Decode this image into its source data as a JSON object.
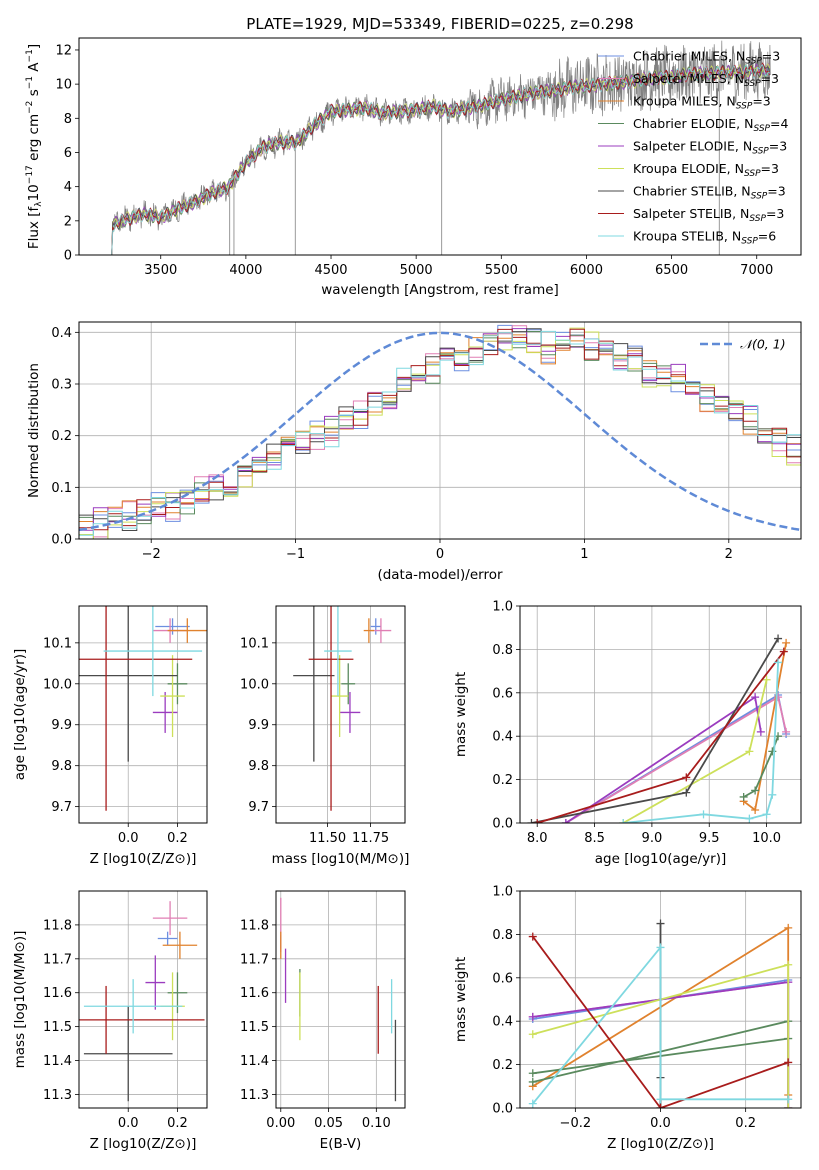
{
  "figure": {
    "title": "PLATE=1929, MJD=53349, FIBERID=0225, z=0.298"
  },
  "styles": {
    "Chabrier MILES": "#6d8fe0",
    "Salpeter MILES": "#e07fb4",
    "Kroupa MILES": "#e0822e",
    "Chabrier ELODIE": "#5a8a5e",
    "Salpeter ELODIE": "#9b3cbf",
    "Kroupa ELODIE": "#cde05a",
    "Chabrier STELIB": "#4a4a4a",
    "Salpeter STELIB": "#a81c1c",
    "Kroupa STELIB": "#7fd8e0",
    "observed": "#808080",
    "normal": "#5f8ad6"
  },
  "chart_data": [
    {
      "type": "line",
      "panel": "spectrum",
      "title": "PLATE=1929, MJD=53349, FIBERID=0225, z=0.298",
      "xlabel": "wavelength [Angstrom, rest frame]",
      "ylabel": "Flux [f_λ 10^-17 erg cm^-2 s^-1 A^-1]",
      "xlim": [
        3020,
        7260
      ],
      "ylim": [
        0,
        12.7
      ],
      "xticks": [
        "3500",
        "4000",
        "4500",
        "5000",
        "5500",
        "6000",
        "6500",
        "7000"
      ],
      "yticks": [
        "0",
        "2",
        "4",
        "6",
        "8",
        "10",
        "12"
      ],
      "grid": false,
      "legend_position": "upper right",
      "continuum": {
        "x": [
          3200,
          3300,
          3400,
          3500,
          3600,
          3700,
          3800,
          3900,
          4000,
          4100,
          4200,
          4300,
          4400,
          4500,
          4600,
          4700,
          4800,
          4900,
          5000,
          5100,
          5200,
          5300,
          5400,
          5500,
          5600,
          5700,
          5800,
          5900,
          6000,
          6100,
          6200,
          6300,
          6400,
          6500,
          6600,
          6700,
          6800,
          6900,
          7000,
          7080
        ],
        "y": [
          1.7,
          2.1,
          2.4,
          2.2,
          2.7,
          3.1,
          3.6,
          4.0,
          5.4,
          6.3,
          6.6,
          6.6,
          7.6,
          8.4,
          8.5,
          8.6,
          8.3,
          8.4,
          8.5,
          8.7,
          8.4,
          8.6,
          8.8,
          9.1,
          9.3,
          9.5,
          9.6,
          9.8,
          9.9,
          10.0,
          10.1,
          10.2,
          10.4,
          10.4,
          10.6,
          10.6,
          10.7,
          10.7,
          10.8,
          10.8
        ]
      },
      "series": [
        {
          "name": "Chabrier MILES",
          "nssp": "3"
        },
        {
          "name": "Salpeter MILES",
          "nssp": "3"
        },
        {
          "name": "Kroupa MILES",
          "nssp": "3"
        },
        {
          "name": "Chabrier ELODIE",
          "nssp": "4"
        },
        {
          "name": "Salpeter ELODIE",
          "nssp": "3"
        },
        {
          "name": "Kroupa ELODIE",
          "nssp": "3"
        },
        {
          "name": "Chabrier STELIB",
          "nssp": "3"
        },
        {
          "name": "Salpeter STELIB",
          "nssp": "3"
        },
        {
          "name": "Kroupa STELIB",
          "nssp": "6"
        }
      ]
    },
    {
      "type": "histogram",
      "panel": "residuals",
      "xlabel": "(data-model)/error",
      "ylabel": "Normed distribution",
      "xlim": [
        -2.5,
        2.5
      ],
      "ylim": [
        0,
        0.42
      ],
      "xticks": [
        "−2",
        "−1",
        "0",
        "1",
        "2"
      ],
      "yticks": [
        "0.0",
        "0.1",
        "0.2",
        "0.3",
        "0.4"
      ],
      "grid": true,
      "legend_position": "upper right",
      "legend_label": "𝒩(0, 1)",
      "bin_width": 0.1,
      "bin_start": -2.5,
      "counts": [
        0.02,
        0.03,
        0.04,
        0.045,
        0.05,
        0.06,
        0.065,
        0.075,
        0.09,
        0.1,
        0.11,
        0.13,
        0.14,
        0.155,
        0.18,
        0.19,
        0.2,
        0.21,
        0.23,
        0.24,
        0.27,
        0.28,
        0.3,
        0.32,
        0.33,
        0.34,
        0.35,
        0.36,
        0.38,
        0.39,
        0.39,
        0.38,
        0.37,
        0.38,
        0.39,
        0.37,
        0.36,
        0.35,
        0.35,
        0.32,
        0.32,
        0.31,
        0.29,
        0.27,
        0.26,
        0.25,
        0.23,
        0.21,
        0.19,
        0.17,
        0.16,
        0.14,
        0.12,
        0.11,
        0.1,
        0.08,
        0.07,
        0.06,
        0.05,
        0.045,
        0.04,
        0.035,
        0.03,
        0.03,
        0.03
      ]
    },
    {
      "type": "scatter",
      "panel": "age-vs-Z",
      "xlabel": "Z [log10(Z/Z⊙)]",
      "ylabel": "age  [log10(age/yr)]",
      "xlim": [
        -0.2,
        0.32
      ],
      "ylim": [
        9.66,
        10.19
      ],
      "xticks": [
        "0.0",
        "0.2"
      ],
      "yticks": [
        "9.7",
        "9.8",
        "9.9",
        "10.0",
        "10.1"
      ],
      "grid": true,
      "points": [
        {
          "name": "Chabrier MILES",
          "x": 0.18,
          "xerr": 0.07,
          "y": 10.14,
          "yerr": 0.02
        },
        {
          "name": "Salpeter MILES",
          "x": 0.17,
          "xerr": 0.07,
          "y": 10.13,
          "yerr": 0.03
        },
        {
          "name": "Kroupa MILES",
          "x": 0.24,
          "xerr": 0.08,
          "y": 10.13,
          "yerr": 0.03
        },
        {
          "name": "Chabrier ELODIE",
          "x": 0.2,
          "xerr": 0.04,
          "y": 10.0,
          "yerr": 0.05
        },
        {
          "name": "Salpeter ELODIE",
          "x": 0.15,
          "xerr": 0.05,
          "y": 9.93,
          "yerr": 0.05
        },
        {
          "name": "Kroupa ELODIE",
          "x": 0.18,
          "xerr": 0.05,
          "y": 9.97,
          "yerr": 0.1
        },
        {
          "name": "Chabrier STELIB",
          "x": 0.0,
          "xerr": 0.2,
          "y": 10.02,
          "yerr": 0.21
        },
        {
          "name": "Salpeter STELIB",
          "x": -0.09,
          "xerr": 0.35,
          "y": 10.06,
          "yerr": 0.37
        },
        {
          "name": "Kroupa STELIB",
          "x": 0.1,
          "xerr": 0.2,
          "y": 10.08,
          "yerr": 0.11
        }
      ]
    },
    {
      "type": "scatter",
      "panel": "age-vs-mass",
      "xlabel": "mass [log10(M/M⊙)]",
      "xlim": [
        11.2,
        11.95
      ],
      "ylim": [
        9.66,
        10.19
      ],
      "xticks": [
        "11.50",
        "11.75"
      ],
      "yticks": [
        "9.7",
        "9.8",
        "9.9",
        "10.0",
        "10.1"
      ],
      "grid": true,
      "points": [
        {
          "name": "Chabrier MILES",
          "x": 11.78,
          "xerr": 0.03,
          "y": 10.14,
          "yerr": 0.02
        },
        {
          "name": "Salpeter MILES",
          "x": 11.81,
          "xerr": 0.06,
          "y": 10.13,
          "yerr": 0.03
        },
        {
          "name": "Kroupa MILES",
          "x": 11.74,
          "xerr": 0.03,
          "y": 10.13,
          "yerr": 0.03
        },
        {
          "name": "Chabrier ELODIE",
          "x": 11.62,
          "xerr": 0.04,
          "y": 10.0,
          "yerr": 0.05
        },
        {
          "name": "Salpeter ELODIE",
          "x": 11.63,
          "xerr": 0.06,
          "y": 9.93,
          "yerr": 0.05
        },
        {
          "name": "Kroupa ELODIE",
          "x": 11.57,
          "xerr": 0.05,
          "y": 9.97,
          "yerr": 0.1
        },
        {
          "name": "Chabrier STELIB",
          "x": 11.42,
          "xerr": 0.12,
          "y": 10.02,
          "yerr": 0.21
        },
        {
          "name": "Salpeter STELIB",
          "x": 11.52,
          "xerr": 0.13,
          "y": 10.06,
          "yerr": 0.37
        },
        {
          "name": "Kroupa STELIB",
          "x": 11.56,
          "xerr": 0.08,
          "y": 10.08,
          "yerr": 0.11
        }
      ]
    },
    {
      "type": "line",
      "panel": "weight-vs-age",
      "xlabel": "age  [log10(age/yr)]",
      "ylabel": "mass weight",
      "xlim": [
        7.85,
        10.3
      ],
      "ylim": [
        0,
        1.0
      ],
      "xticks": [
        "8.0",
        "8.5",
        "9.0",
        "9.5",
        "10.0"
      ],
      "yticks": [
        "0.0",
        "0.2",
        "0.4",
        "0.6",
        "0.8",
        "1.0"
      ],
      "grid": true,
      "series": [
        {
          "name": "Chabrier MILES",
          "x": [
            8.25,
            10.1,
            10.17
          ],
          "y": [
            0.0,
            0.59,
            0.41
          ]
        },
        {
          "name": "Salpeter MILES",
          "x": [
            8.25,
            10.1,
            10.17
          ],
          "y": [
            0.0,
            0.58,
            0.42
          ]
        },
        {
          "name": "Kroupa MILES",
          "x": [
            9.8,
            9.9,
            10.17
          ],
          "y": [
            0.1,
            0.06,
            0.83
          ]
        },
        {
          "name": "Chabrier ELODIE",
          "x": [
            9.8,
            9.9,
            10.05,
            10.1
          ],
          "y": [
            0.12,
            0.15,
            0.33,
            0.4
          ]
        },
        {
          "name": "Salpeter ELODIE",
          "x": [
            8.25,
            9.9,
            9.95
          ],
          "y": [
            0.0,
            0.58,
            0.42
          ]
        },
        {
          "name": "Kroupa ELODIE",
          "x": [
            8.75,
            9.85,
            10.0
          ],
          "y": [
            0.0,
            0.33,
            0.66
          ]
        },
        {
          "name": "Chabrier STELIB",
          "x": [
            7.95,
            9.3,
            10.1
          ],
          "y": [
            0.0,
            0.14,
            0.85
          ]
        },
        {
          "name": "Salpeter STELIB",
          "x": [
            8.0,
            9.3,
            10.15
          ],
          "y": [
            0.0,
            0.21,
            0.79
          ]
        },
        {
          "name": "Kroupa STELIB",
          "x": [
            8.75,
            9.45,
            9.85,
            10.0,
            10.05,
            10.1
          ],
          "y": [
            0.0,
            0.04,
            0.02,
            0.04,
            0.13,
            0.74
          ]
        }
      ]
    },
    {
      "type": "scatter",
      "panel": "mass-vs-Z",
      "xlabel": "Z [log10(Z/Z⊙)]",
      "ylabel": "mass [log10(M/M⊙)]",
      "xlim": [
        -0.2,
        0.32
      ],
      "ylim": [
        11.26,
        11.9
      ],
      "xticks": [
        "0.0",
        "0.2"
      ],
      "yticks": [
        "11.3",
        "11.4",
        "11.5",
        "11.6",
        "11.7",
        "11.8"
      ],
      "grid": true,
      "points": [
        {
          "name": "Chabrier MILES",
          "x": 0.16,
          "xerr": 0.04,
          "y": 11.76,
          "yerr": 0.02
        },
        {
          "name": "Salpeter MILES",
          "x": 0.17,
          "xerr": 0.07,
          "y": 11.82,
          "yerr": 0.05
        },
        {
          "name": "Kroupa MILES",
          "x": 0.21,
          "xerr": 0.07,
          "y": 11.74,
          "yerr": 0.04
        },
        {
          "name": "Chabrier ELODIE",
          "x": 0.2,
          "xerr": 0.04,
          "y": 11.6,
          "yerr": 0.06
        },
        {
          "name": "Salpeter ELODIE",
          "x": 0.11,
          "xerr": 0.04,
          "y": 11.63,
          "yerr": 0.08
        },
        {
          "name": "Kroupa ELODIE",
          "x": 0.18,
          "xerr": 0.05,
          "y": 11.56,
          "yerr": 0.1
        },
        {
          "name": "Chabrier STELIB",
          "x": 0.0,
          "xerr": 0.18,
          "y": 11.42,
          "yerr": 0.14
        },
        {
          "name": "Salpeter STELIB",
          "x": -0.09,
          "xerr": 0.4,
          "y": 11.52,
          "yerr": 0.1
        },
        {
          "name": "Kroupa STELIB",
          "x": 0.02,
          "xerr": 0.2,
          "y": 11.56,
          "yerr": 0.08
        }
      ]
    },
    {
      "type": "scatter",
      "panel": "mass-vs-EBV",
      "xlabel": "E(B-V)",
      "xlim": [
        -0.005,
        0.13
      ],
      "ylim": [
        11.26,
        11.9
      ],
      "xticks": [
        "0.00",
        "0.05",
        "0.10"
      ],
      "yticks": [
        "11.3",
        "11.4",
        "11.5",
        "11.6",
        "11.7",
        "11.8"
      ],
      "grid": true,
      "points": [
        {
          "name": "Chabrier MILES",
          "x": 0.0,
          "y": 11.75,
          "yerr": 0.02
        },
        {
          "name": "Salpeter MILES",
          "x": 0.0,
          "y": 11.8,
          "yerr": 0.08
        },
        {
          "name": "Kroupa MILES",
          "x": 0.0,
          "y": 11.74,
          "yerr": 0.04
        },
        {
          "name": "Chabrier ELODIE",
          "x": 0.02,
          "y": 11.6,
          "yerr": 0.07
        },
        {
          "name": "Salpeter ELODIE",
          "x": 0.005,
          "y": 11.65,
          "yerr": 0.08
        },
        {
          "name": "Kroupa ELODIE",
          "x": 0.02,
          "y": 11.56,
          "yerr": 0.1
        },
        {
          "name": "Chabrier STELIB",
          "x": 0.12,
          "y": 11.4,
          "yerr": 0.12
        },
        {
          "name": "Salpeter STELIB",
          "x": 0.102,
          "y": 11.52,
          "yerr": 0.1
        },
        {
          "name": "Kroupa STELIB",
          "x": 0.116,
          "y": 11.56,
          "yerr": 0.08
        }
      ]
    },
    {
      "type": "line",
      "panel": "weight-vs-Z",
      "xlabel": "Z [log10(Z/Z⊙)]",
      "ylabel": "mass weight",
      "xlim": [
        -0.33,
        0.33
      ],
      "ylim": [
        0,
        1.0
      ],
      "xticks": [
        "−0.2",
        "0.0",
        "0.2"
      ],
      "yticks": [
        "0.0",
        "0.2",
        "0.4",
        "0.6",
        "0.8",
        "1.0"
      ],
      "grid": true,
      "series": [
        {
          "name": "Chabrier MILES",
          "x": [
            -0.3,
            0.3,
            0.3
          ],
          "y": [
            0.41,
            0.59,
            0.0
          ]
        },
        {
          "name": "Salpeter MILES",
          "x": [
            -0.3,
            0.3,
            0.3
          ],
          "y": [
            0.42,
            0.58,
            0.0
          ]
        },
        {
          "name": "Kroupa MILES",
          "x": [
            -0.3,
            0.3,
            0.3
          ],
          "y": [
            0.1,
            0.83,
            0.06
          ]
        },
        {
          "name": "Chabrier ELODIE",
          "x": [
            -0.3,
            0.3,
            0.3,
            -0.3
          ],
          "y": [
            0.16,
            0.32,
            0.4,
            0.12
          ]
        },
        {
          "name": "Salpeter ELODIE",
          "x": [
            -0.3,
            0.3,
            0.3
          ],
          "y": [
            0.42,
            0.58,
            0.0
          ]
        },
        {
          "name": "Kroupa ELODIE",
          "x": [
            -0.3,
            0.3,
            0.3
          ],
          "y": [
            0.34,
            0.66,
            0.0
          ]
        },
        {
          "name": "Chabrier STELIB",
          "x": [
            0.0,
            0.0,
            0.0
          ],
          "y": [
            0.0,
            0.85,
            0.14
          ]
        },
        {
          "name": "Salpeter STELIB",
          "x": [
            -0.3,
            0.0,
            0.3
          ],
          "y": [
            0.79,
            0.0,
            0.21
          ]
        },
        {
          "name": "Kroupa STELIB",
          "x": [
            -0.3,
            0.0,
            0.0,
            0.3
          ],
          "y": [
            0.02,
            0.74,
            0.04,
            0.04
          ]
        }
      ]
    }
  ]
}
